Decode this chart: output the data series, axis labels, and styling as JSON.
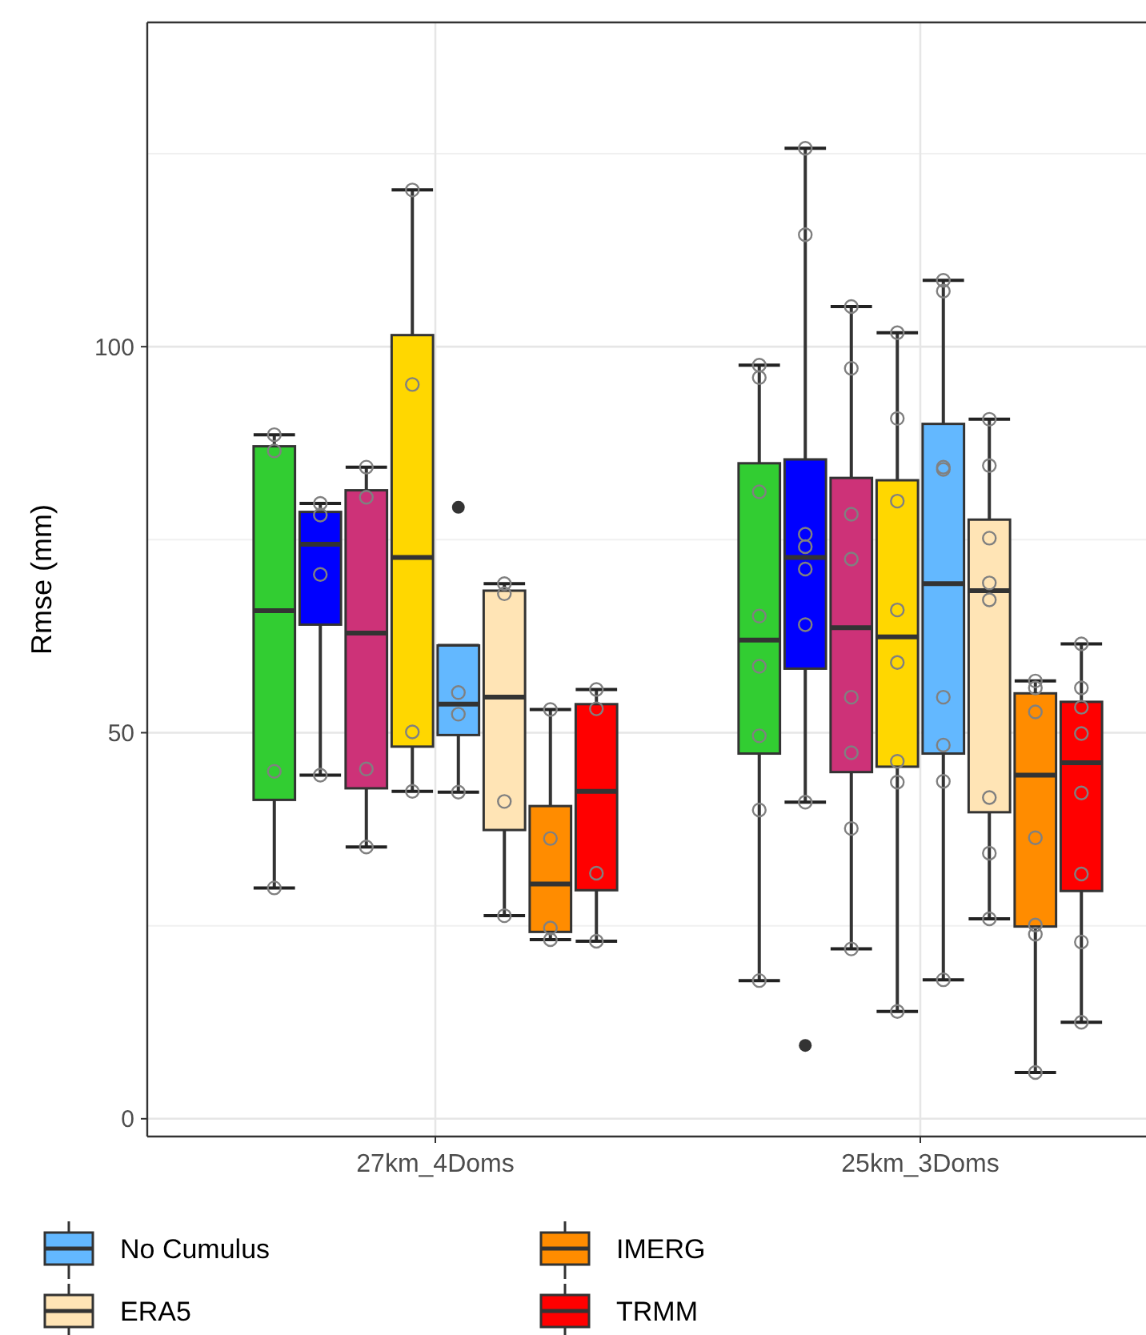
{
  "chart_data": {
    "type": "box",
    "ylabel": "Rmse (mm)",
    "categories": [
      "27km_4Doms",
      "25km_3Doms"
    ],
    "ylim": [
      -2.3,
      142
    ],
    "yticks": [
      0,
      {
        "value": 25,
        "label": null
      },
      50,
      {
        "value": 75,
        "label": null
      },
      100,
      {
        "value": 125,
        "label": null
      }
    ],
    "grid": true,
    "legend": "bottom",
    "marker": "circle",
    "series": [
      {
        "color": "#32cd32",
        "boxes": [
          {
            "low": 29.9,
            "q1": 41.3,
            "median": 65.8,
            "q3": 87.1,
            "high": 88.6
          },
          {
            "low": 17.9,
            "q1": 47.3,
            "median": 62.0,
            "q3": 84.9,
            "high": 97.6
          }
        ]
      },
      {
        "color": "#0000ff",
        "boxes": [
          {
            "low": 44.5,
            "q1": 64.0,
            "median": 74.4,
            "q3": 78.6,
            "high": 79.7
          },
          {
            "low": 41.0,
            "q1": 58.3,
            "median": 72.7,
            "q3": 85.4,
            "high": 125.7,
            "outliers": [
              9.5
            ]
          }
        ]
      },
      {
        "color": "#cd3278",
        "boxes": [
          {
            "low": 35.2,
            "q1": 42.8,
            "median": 62.9,
            "q3": 81.4,
            "high": 84.4
          },
          {
            "low": 22.0,
            "q1": 44.9,
            "median": 63.6,
            "q3": 83.0,
            "high": 105.2
          }
        ]
      },
      {
        "color": "#ffd700",
        "boxes": [
          {
            "low": 42.4,
            "q1": 48.2,
            "median": 72.7,
            "q3": 101.5,
            "high": 120.3
          },
          {
            "low": 13.9,
            "q1": 45.6,
            "median": 62.4,
            "q3": 82.7,
            "high": 101.8
          }
        ]
      },
      {
        "name": "No Cumulus",
        "color": "#63b8ff",
        "boxes": [
          {
            "low": 42.3,
            "q1": 49.7,
            "median": 53.7,
            "q3": 61.3,
            "high": 61.3,
            "outliers": [
              79.2
            ]
          },
          {
            "low": 18.0,
            "q1": 47.3,
            "median": 69.3,
            "q3": 90.0,
            "high": 108.6
          }
        ]
      },
      {
        "name": "ERA5",
        "color": "#ffe4b5",
        "boxes": [
          {
            "low": 26.3,
            "q1": 37.4,
            "median": 54.6,
            "q3": 68.4,
            "high": 69.3
          },
          {
            "low": 25.9,
            "q1": 39.7,
            "median": 68.4,
            "q3": 77.6,
            "high": 90.6
          }
        ]
      },
      {
        "name": "IMERG",
        "color": "#ff8c00",
        "boxes": [
          {
            "low": 23.2,
            "q1": 24.2,
            "median": 30.4,
            "q3": 40.5,
            "high": 53.0
          },
          {
            "low": 6.0,
            "q1": 24.9,
            "median": 44.5,
            "q3": 55.1,
            "high": 56.7
          }
        ]
      },
      {
        "name": "TRMM",
        "color": "#ff0000",
        "boxes": [
          {
            "low": 23.0,
            "q1": 29.6,
            "median": 42.4,
            "q3": 53.7,
            "high": 55.6
          },
          {
            "low": 12.5,
            "q1": 29.5,
            "median": 46.1,
            "q3": 54.0,
            "high": 61.5
          }
        ]
      },
      {
        "type": "scatter",
        "color": "#808080",
        "x": [
          "27km_4Doms",
          "27km_4Doms",
          "27km_4Doms",
          "27km_4Doms",
          "25km_3Doms",
          "25km_3Doms",
          "25km_3Doms",
          "25km_3Doms",
          "25km_3Doms",
          "25km_3Doms",
          "25km_3Doms",
          "25km_3Doms"
        ],
        "values": [
          88.6,
          86.5,
          45.0,
          29.9,
          97.6,
          96.0,
          81.2,
          65.1,
          58.6,
          49.6,
          40.0,
          17.9
        ]
      },
      {
        "type": "scatter",
        "color": "#808080",
        "x": [
          "27km_4Doms",
          "27km_4Doms",
          "27km_4Doms",
          "27km_4Doms",
          "25km_3Doms",
          "25km_3Doms",
          "25km_3Doms",
          "25km_3Doms",
          "25km_3Doms",
          "25km_3Doms",
          "25km_3Doms"
        ],
        "values": [
          79.7,
          78.2,
          70.5,
          44.5,
          125.7,
          114.5,
          75.7,
          74.1,
          71.2,
          64.0,
          41.0
        ]
      },
      {
        "type": "scatter",
        "color": "#808080",
        "x": [
          "27km_4Doms",
          "27km_4Doms",
          "27km_4Doms",
          "27km_4Doms",
          "25km_3Doms",
          "25km_3Doms",
          "25km_3Doms",
          "25km_3Doms",
          "25km_3Doms",
          "25km_3Doms",
          "25km_3Doms",
          "25km_3Doms"
        ],
        "values": [
          84.4,
          80.5,
          45.3,
          35.2,
          105.2,
          97.2,
          78.3,
          72.5,
          54.6,
          47.4,
          37.6,
          22.0
        ]
      },
      {
        "type": "scatter",
        "color": "#808080",
        "x": [
          "27km_4Doms",
          "27km_4Doms",
          "27km_4Doms",
          "27km_4Doms",
          "25km_3Doms",
          "25km_3Doms",
          "25km_3Doms",
          "25km_3Doms",
          "25km_3Doms",
          "25km_3Doms",
          "25km_3Doms",
          "25km_3Doms"
        ],
        "values": [
          120.3,
          95.1,
          50.1,
          42.4,
          101.8,
          90.7,
          80.0,
          65.9,
          59.1,
          46.3,
          43.6,
          13.9
        ]
      },
      {
        "type": "scatter",
        "color": "#808080",
        "x": [
          "27km_4Doms",
          "27km_4Doms",
          "27km_4Doms",
          "25km_3Doms",
          "25km_3Doms",
          "25km_3Doms",
          "25km_3Doms",
          "25km_3Doms",
          "25km_3Doms",
          "25km_3Doms",
          "25km_3Doms"
        ],
        "values": [
          55.2,
          52.4,
          42.3,
          108.6,
          107.2,
          84.4,
          84.1,
          54.6,
          48.4,
          43.7,
          18.0
        ]
      },
      {
        "type": "scatter",
        "color": "#808080",
        "x": [
          "27km_4Doms",
          "27km_4Doms",
          "27km_4Doms",
          "27km_4Doms",
          "25km_3Doms",
          "25km_3Doms",
          "25km_3Doms",
          "25km_3Doms",
          "25km_3Doms",
          "25km_3Doms",
          "25km_3Doms",
          "25km_3Doms"
        ],
        "values": [
          69.3,
          68.0,
          41.1,
          26.3,
          90.6,
          84.6,
          75.2,
          69.4,
          67.2,
          41.6,
          34.4,
          25.9
        ]
      },
      {
        "type": "scatter",
        "color": "#808080",
        "x": [
          "27km_4Doms",
          "27km_4Doms",
          "27km_4Doms",
          "27km_4Doms",
          "25km_3Doms",
          "25km_3Doms",
          "25km_3Doms",
          "25km_3Doms",
          "25km_3Doms",
          "25km_3Doms",
          "25km_3Doms"
        ],
        "values": [
          53.0,
          36.3,
          24.7,
          23.2,
          56.7,
          55.8,
          52.7,
          36.4,
          25.1,
          23.9,
          6.0
        ]
      },
      {
        "type": "scatter",
        "color": "#808080",
        "x": [
          "27km_4Doms",
          "27km_4Doms",
          "27km_4Doms",
          "27km_4Doms",
          "25km_3Doms",
          "25km_3Doms",
          "25km_3Doms",
          "25km_3Doms",
          "25km_3Doms",
          "25km_3Doms",
          "25km_3Doms",
          "25km_3Doms"
        ],
        "values": [
          55.6,
          53.1,
          31.8,
          23.0,
          61.5,
          55.8,
          53.3,
          49.9,
          42.2,
          31.7,
          22.9,
          12.5
        ]
      }
    ]
  }
}
